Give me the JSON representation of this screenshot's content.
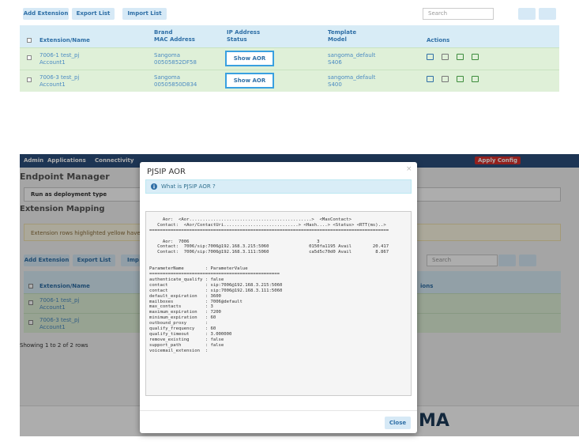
{
  "top": {
    "buttons": [
      "Add Extension",
      "Export List",
      "Import List"
    ],
    "search": "Search",
    "headers": [
      [
        "Extension/Name"
      ],
      [
        "Brand",
        "MAC Address"
      ],
      [
        "IP Address",
        "Status"
      ],
      [
        "Template",
        "Model"
      ],
      [
        "Actions"
      ]
    ],
    "rows": [
      {
        "name": "7006-1 test_pj",
        "account": "Account1",
        "brand": "Sangoma",
        "mac": "00505852DF58",
        "status": "Show AOR",
        "template": "sangoma_default",
        "model": "S406"
      },
      {
        "name": "7006-3 test_pj",
        "account": "Account1",
        "brand": "Sangoma",
        "mac": "00505850D834",
        "status": "Show AOR",
        "template": "sangoma_default",
        "model": "S400"
      }
    ]
  },
  "background": {
    "nav": [
      "Admin",
      "Applications",
      "Connectivity"
    ],
    "apply": "Apply Config",
    "heading": "Endpoint Manager",
    "deployment": "Run as deployment type",
    "mapping": "Extension Mapping",
    "note": "Extension rows highlighted yellow have not be",
    "buttons": [
      "Add Extension",
      "Export List",
      "Imp"
    ],
    "search": "Search",
    "headers": [
      "Extension/Name",
      "ions"
    ],
    "rows": [
      [
        "7006-1 test_pj",
        "Account1"
      ],
      [
        "7006-3 test_pj",
        "Account1"
      ]
    ],
    "showing": "Showing 1 to 2 of 2 rows",
    "logo": "MA"
  },
  "modal": {
    "title": "PJSIP AOR",
    "close_x": "×",
    "info": "What is PJSIP AOR ?",
    "output": "\n     Aor:  <Aor..............................................>  <MaxContact>\n   Contact:  <Aor/ContactUri............................> <Hash....> <Status> <RTT(ms)..>\n==========================================================================================\n\n     Aor:  7006                                                3\n   Contact:  7006/sip:7006@192.168.3.215:5060               0150fa1195 Avail        20.417\n   Contact:  7006/sip:7006@192.168.3.111:5060               ca5d5c70d0 Avail         8.867\n\n\nParameterName        : ParameterValue\n=================================================\nauthenticate_qualify : false\ncontact              : sip:7006@192.168.3.215:5060\ncontact              : sip:7006@192.168.3.111:5060\ndefault_expiration   : 3600\nmailboxes            : 7006@default\nmax_contacts         : 3\nmaximum_expiration   : 7200\nminimum_expiration   : 60\noutbound_proxy       :\nqualify_frequency    : 60\nqualify_timeout      : 3.000000\nremove_existing      : false\nsupport_path         : false\nvoicemail_extension  :",
    "close": "Close"
  }
}
